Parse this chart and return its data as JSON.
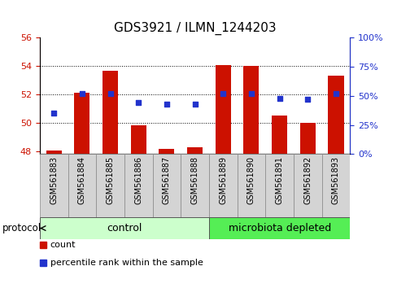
{
  "title": "GDS3921 / ILMN_1244203",
  "samples": [
    "GSM561883",
    "GSM561884",
    "GSM561885",
    "GSM561886",
    "GSM561887",
    "GSM561888",
    "GSM561889",
    "GSM561890",
    "GSM561891",
    "GSM561892",
    "GSM561893"
  ],
  "counts": [
    48.07,
    52.1,
    53.65,
    49.82,
    48.18,
    48.28,
    54.05,
    54.02,
    50.52,
    50.0,
    53.3
  ],
  "percentile_ranks": [
    35,
    52,
    52,
    44,
    43,
    43,
    52,
    52,
    48,
    47,
    52
  ],
  "ylim_left": [
    47.8,
    56.0
  ],
  "ylim_right": [
    0,
    100
  ],
  "yticks_left": [
    48,
    50,
    52,
    54,
    56
  ],
  "yticks_right": [
    0,
    25,
    50,
    75,
    100
  ],
  "bar_color": "#cc1100",
  "dot_color": "#2233cc",
  "bar_bottom": 47.8,
  "groups": [
    {
      "label": "control",
      "start": 0,
      "end": 5,
      "color": "#ccffcc"
    },
    {
      "label": "microbiota depleted",
      "start": 6,
      "end": 10,
      "color": "#55ee55"
    }
  ],
  "protocol_label": "protocol",
  "legend_count_label": "count",
  "legend_pct_label": "percentile rank within the sample",
  "grid_yticks": [
    50,
    52,
    54
  ],
  "title_fontsize": 11,
  "tick_fontsize": 8,
  "label_fontsize": 7,
  "group_fontsize": 9
}
